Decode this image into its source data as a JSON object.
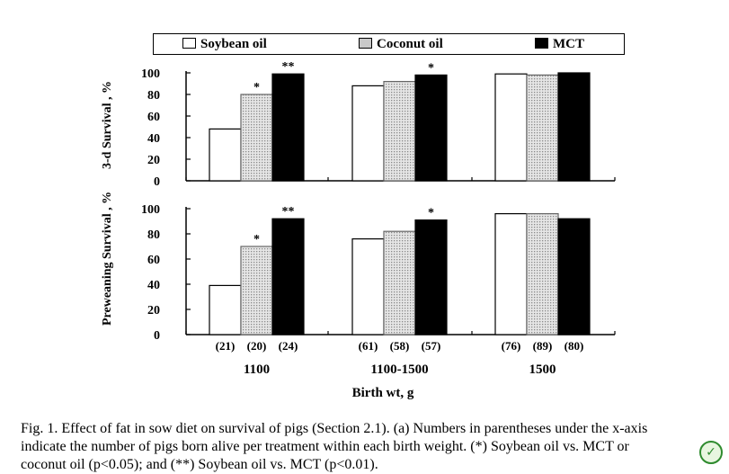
{
  "legend": [
    {
      "label": "Soybean oil",
      "key": "soy"
    },
    {
      "label": "Coconut oil",
      "key": "coco"
    },
    {
      "label": "MCT",
      "key": "mct"
    }
  ],
  "colors": {
    "soy": "#ffffff",
    "coco": "#d4d4d4",
    "mct": "#000000"
  },
  "chart_data": [
    {
      "type": "bar",
      "ylabel": "3-d Survival , %",
      "ylim": [
        0,
        100
      ],
      "yticks": [
        0,
        20,
        40,
        60,
        80,
        100
      ],
      "categories": [
        "1100",
        "1100-1500",
        "1500"
      ],
      "series": [
        {
          "name": "Soybean oil",
          "values": [
            48,
            88,
            99
          ]
        },
        {
          "name": "Coconut oil",
          "values": [
            80,
            92,
            98
          ]
        },
        {
          "name": "MCT",
          "values": [
            99,
            98,
            100
          ]
        }
      ],
      "annotations": [
        {
          "group": 0,
          "series": 1,
          "text": "*"
        },
        {
          "group": 0,
          "series": 2,
          "text": "**"
        },
        {
          "group": 1,
          "series": 2,
          "text": "*"
        }
      ]
    },
    {
      "type": "bar",
      "ylabel": "Preweaning Survival , %",
      "ylim": [
        0,
        100
      ],
      "yticks": [
        0,
        20,
        40,
        60,
        80,
        100
      ],
      "categories": [
        "1100",
        "1100-1500",
        "1500"
      ],
      "series": [
        {
          "name": "Soybean oil",
          "values": [
            39,
            76,
            96
          ]
        },
        {
          "name": "Coconut oil",
          "values": [
            70,
            82,
            96
          ]
        },
        {
          "name": "MCT",
          "values": [
            92,
            91,
            92
          ]
        }
      ],
      "annotations": [
        {
          "group": 0,
          "series": 1,
          "text": "*"
        },
        {
          "group": 0,
          "series": 2,
          "text": "**"
        },
        {
          "group": 1,
          "series": 2,
          "text": "*"
        }
      ],
      "counts": [
        [
          "(21)",
          "(20)",
          "(24)"
        ],
        [
          "(61)",
          "(58)",
          "(57)"
        ],
        [
          "(76)",
          "(89)",
          "(80)"
        ]
      ],
      "xlabel": "Birth wt, g"
    }
  ],
  "caption": {
    "line1": "Fig. 1.  Effect of fat in sow diet on survival of pigs (Section 2.1). (a) Numbers in parentheses under the x-axis",
    "line2": "indicate the number of pigs born alive per treatment within each birth weight. (*) Soybean oil vs. MCT or",
    "line3": "coconut oil (p<0.05); and (**) Soybean oil vs. MCT (p<0.01)."
  }
}
